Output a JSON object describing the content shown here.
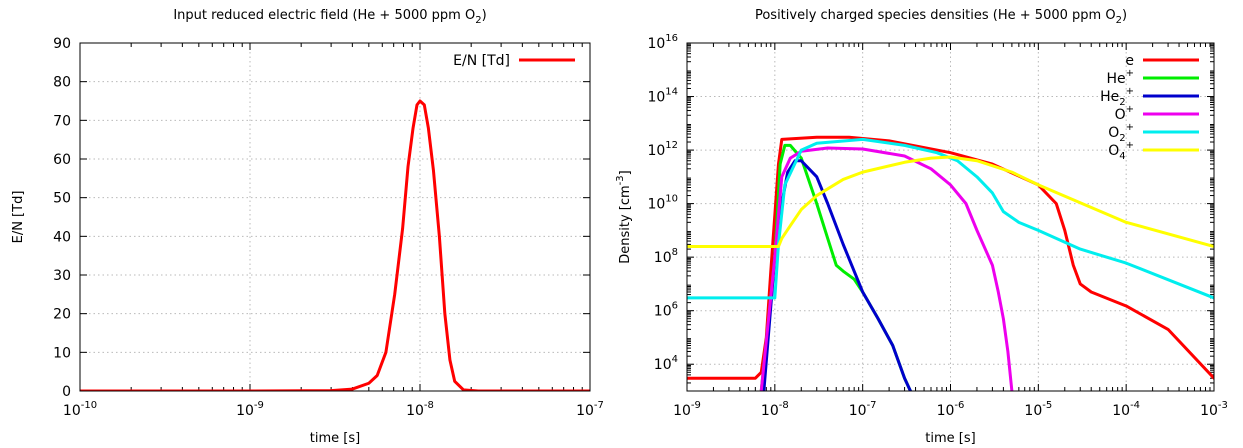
{
  "chart_data": [
    {
      "type": "line",
      "title": "Input reduced electric field (He + 5000 ppm O",
      "title_sub": "2",
      "title_end": ")",
      "xlabel": "time [s]",
      "ylabel": "E/N [Td]",
      "xscale": "log",
      "xlim": [
        1e-10,
        1e-07
      ],
      "ylim": [
        0,
        90
      ],
      "x_ticks": [
        {
          "value": 1e-10,
          "base": "10",
          "exp": "-10"
        },
        {
          "value": 1e-09,
          "base": "10",
          "exp": "-9"
        },
        {
          "value": 1e-08,
          "base": "10",
          "exp": "-8"
        },
        {
          "value": 1e-07,
          "base": "10",
          "exp": "-7"
        }
      ],
      "y_ticks": [
        {
          "value": 0,
          "label": "0"
        },
        {
          "value": 10,
          "label": "10"
        },
        {
          "value": 20,
          "label": "20"
        },
        {
          "value": 30,
          "label": "30"
        },
        {
          "value": 40,
          "label": "40"
        },
        {
          "value": 50,
          "label": "50"
        },
        {
          "value": 60,
          "label": "60"
        },
        {
          "value": 70,
          "label": "70"
        },
        {
          "value": 80,
          "label": "80"
        },
        {
          "value": 90,
          "label": "90"
        }
      ],
      "grid": true,
      "legend_position": "top-right",
      "series": [
        {
          "name": "E/N [Td]",
          "color": "#ff0000",
          "points": [
            [
              1e-10,
              0.0
            ],
            [
              1e-09,
              0.0
            ],
            [
              3e-09,
              0.1
            ],
            [
              4e-09,
              0.5
            ],
            [
              5e-09,
              2.0
            ],
            [
              5.6e-09,
              4.0
            ],
            [
              6.3e-09,
              10.0
            ],
            [
              7.1e-09,
              25.0
            ],
            [
              7.9e-09,
              42.0
            ],
            [
              8.5e-09,
              58.0
            ],
            [
              9.1e-09,
              68.0
            ],
            [
              9.6e-09,
              74.0
            ],
            [
              1e-08,
              75.0
            ],
            [
              1.06e-08,
              74.0
            ],
            [
              1.12e-08,
              68.0
            ],
            [
              1.2e-08,
              57.0
            ],
            [
              1.3e-08,
              40.0
            ],
            [
              1.4e-08,
              20.0
            ],
            [
              1.5e-08,
              8.0
            ],
            [
              1.6e-08,
              2.5
            ],
            [
              1.8e-08,
              0.3
            ],
            [
              2.2e-08,
              0.0
            ],
            [
              1e-07,
              0.0
            ]
          ]
        }
      ]
    },
    {
      "type": "line",
      "title": "Positively charged species densities (He + 5000 ppm O",
      "title_sub": "2",
      "title_end": ")",
      "xlabel": "time [s]",
      "ylabel": "Density [cm",
      "ylabel_sup": "-3",
      "ylabel_end": "]",
      "xscale": "log",
      "yscale": "log",
      "xlim": [
        1e-09,
        0.001
      ],
      "ylim": [
        1000.0,
        1e+16
      ],
      "x_ticks": [
        {
          "value": 1e-09,
          "base": "10",
          "exp": "-9"
        },
        {
          "value": 1e-08,
          "base": "10",
          "exp": "-8"
        },
        {
          "value": 1e-07,
          "base": "10",
          "exp": "-7"
        },
        {
          "value": 1e-06,
          "base": "10",
          "exp": "-6"
        },
        {
          "value": 1e-05,
          "base": "10",
          "exp": "-5"
        },
        {
          "value": 0.0001,
          "base": "10",
          "exp": "-4"
        },
        {
          "value": 0.001,
          "base": "10",
          "exp": "-3"
        }
      ],
      "y_ticks": [
        {
          "value": 10000.0,
          "base": "10",
          "exp": "4"
        },
        {
          "value": 1000000.0,
          "base": "10",
          "exp": "6"
        },
        {
          "value": 100000000.0,
          "base": "10",
          "exp": "8"
        },
        {
          "value": 10000000000.0,
          "base": "10",
          "exp": "10"
        },
        {
          "value": 1000000000000.0,
          "base": "10",
          "exp": "12"
        },
        {
          "value": 100000000000000.0,
          "base": "10",
          "exp": "14"
        },
        {
          "value": 1e+16,
          "base": "10",
          "exp": "16"
        }
      ],
      "grid": true,
      "legend_position": "top-right",
      "series": [
        {
          "name": "e",
          "sub": "",
          "sup": "",
          "color": "#ff0000",
          "points": [
            [
              1e-09,
              3000.0
            ],
            [
              6e-09,
              3000.0
            ],
            [
              7e-09,
              5000.0
            ],
            [
              8e-09,
              100000.0
            ],
            [
              9e-09,
              30000000.0
            ],
            [
              1.1e-08,
              300000000000.0
            ],
            [
              1.2e-08,
              2500000000000.0
            ],
            [
              3e-08,
              3000000000000.0
            ],
            [
              7e-08,
              3000000000000.0
            ],
            [
              2e-07,
              2200000000000.0
            ],
            [
              1e-06,
              800000000000.0
            ],
            [
              3e-06,
              300000000000.0
            ],
            [
              1e-05,
              50000000000.0
            ],
            [
              1.6e-05,
              10000000000.0
            ],
            [
              2e-05,
              1000000000.0
            ],
            [
              2.5e-05,
              50000000.0
            ],
            [
              3e-05,
              10000000.0
            ],
            [
              4e-05,
              5000000.0
            ],
            [
              0.0001,
              1500000.0
            ],
            [
              0.0003,
              200000.0
            ],
            [
              0.001,
              3000.0
            ]
          ]
        },
        {
          "name": "He",
          "sub": "",
          "sup": "+",
          "color": "#00ee00",
          "points": [
            [
              7e-09,
              1000.0
            ],
            [
              1e-08,
              100000000.0
            ],
            [
              1.15e-08,
              300000000000.0
            ],
            [
              1.3e-08,
              1500000000000.0
            ],
            [
              1.5e-08,
              1500000000000.0
            ],
            [
              2e-08,
              500000000000.0
            ],
            [
              3e-08,
              10000000000.0
            ],
            [
              4e-08,
              500000000.0
            ],
            [
              5e-08,
              50000000.0
            ],
            [
              6e-08,
              30000000.0
            ],
            [
              8e-08,
              15000000.0
            ],
            [
              1e-07,
              5000000.0
            ],
            [
              1.5e-07,
              500000.0
            ],
            [
              2.2e-07,
              50000.0
            ],
            [
              3e-07,
              3000.0
            ],
            [
              3.5e-07,
              1000.0
            ]
          ]
        },
        {
          "name": "He",
          "sub": "2",
          "sup": "+",
          "color": "#0000cc",
          "points": [
            [
              7.5e-09,
              1000.0
            ],
            [
              1e-08,
              100000000.0
            ],
            [
              1.2e-08,
              10000000000.0
            ],
            [
              1.4e-08,
              150000000000.0
            ],
            [
              1.7e-08,
              400000000000.0
            ],
            [
              2e-08,
              400000000000.0
            ],
            [
              3e-08,
              100000000000.0
            ],
            [
              4e-08,
              10000000000.0
            ],
            [
              6e-08,
              300000000.0
            ],
            [
              8e-08,
              30000000.0
            ],
            [
              1e-07,
              5000000.0
            ],
            [
              1.5e-07,
              500000.0
            ],
            [
              2.2e-07,
              50000.0
            ],
            [
              3e-07,
              3000.0
            ],
            [
              3.5e-07,
              1000.0
            ]
          ]
        },
        {
          "name": "O",
          "sub": "",
          "sup": "+",
          "color": "#ee00ee",
          "points": [
            [
              7e-09,
              1000.0
            ],
            [
              1e-08,
              100000000.0
            ],
            [
              1.2e-08,
              100000000000.0
            ],
            [
              1.5e-08,
              500000000000.0
            ],
            [
              2e-08,
              900000000000.0
            ],
            [
              4e-08,
              1200000000000.0
            ],
            [
              1e-07,
              1100000000000.0
            ],
            [
              3e-07,
              600000000000.0
            ],
            [
              6e-07,
              200000000000.0
            ],
            [
              1e-06,
              50000000000.0
            ],
            [
              1.5e-06,
              10000000000.0
            ],
            [
              2e-06,
              1000000000.0
            ],
            [
              3e-06,
              50000000.0
            ],
            [
              3.5e-06,
              5000000.0
            ],
            [
              4e-06,
              500000.0
            ],
            [
              4.5e-06,
              30000.0
            ],
            [
              5e-06,
              1000.0
            ]
          ]
        },
        {
          "name": "O",
          "sub": "2",
          "sup": "+",
          "color": "#00eeee",
          "points": [
            [
              1e-09,
              3000000.0
            ],
            [
              1e-08,
              3000000.0
            ],
            [
              1.1e-08,
              300000000.0
            ],
            [
              1.3e-08,
              50000000000.0
            ],
            [
              2e-08,
              1000000000000.0
            ],
            [
              3e-08,
              1800000000000.0
            ],
            [
              1e-07,
              2500000000000.0
            ],
            [
              3e-07,
              1500000000000.0
            ],
            [
              7e-07,
              800000000000.0
            ],
            [
              1.2e-06,
              400000000000.0
            ],
            [
              2e-06,
              100000000000.0
            ],
            [
              3e-06,
              25000000000.0
            ],
            [
              4e-06,
              5000000000.0
            ],
            [
              6e-06,
              2000000000.0
            ],
            [
              1e-05,
              1000000000.0
            ],
            [
              3e-05,
              200000000.0
            ],
            [
              0.0001,
              60000000.0
            ],
            [
              0.001,
              3000000.0
            ]
          ]
        },
        {
          "name": "O",
          "sub": "4",
          "sup": "+",
          "color": "#ffff00",
          "points": [
            [
              1e-09,
              250000000.0
            ],
            [
              1.1e-08,
              250000000.0
            ],
            [
              1.2e-08,
              500000000.0
            ],
            [
              1.5e-08,
              1500000000.0
            ],
            [
              2e-08,
              6000000000.0
            ],
            [
              3e-08,
              20000000000.0
            ],
            [
              6e-08,
              80000000000.0
            ],
            [
              1e-07,
              150000000000.0
            ],
            [
              3e-07,
              350000000000.0
            ],
            [
              6e-07,
              500000000000.0
            ],
            [
              1e-06,
              550000000000.0
            ],
            [
              2e-06,
              400000000000.0
            ],
            [
              5e-06,
              150000000000.0
            ],
            [
              1e-05,
              50000000000.0
            ],
            [
              0.0001,
              2000000000.0
            ],
            [
              0.001,
              250000000.0
            ]
          ]
        }
      ]
    }
  ]
}
